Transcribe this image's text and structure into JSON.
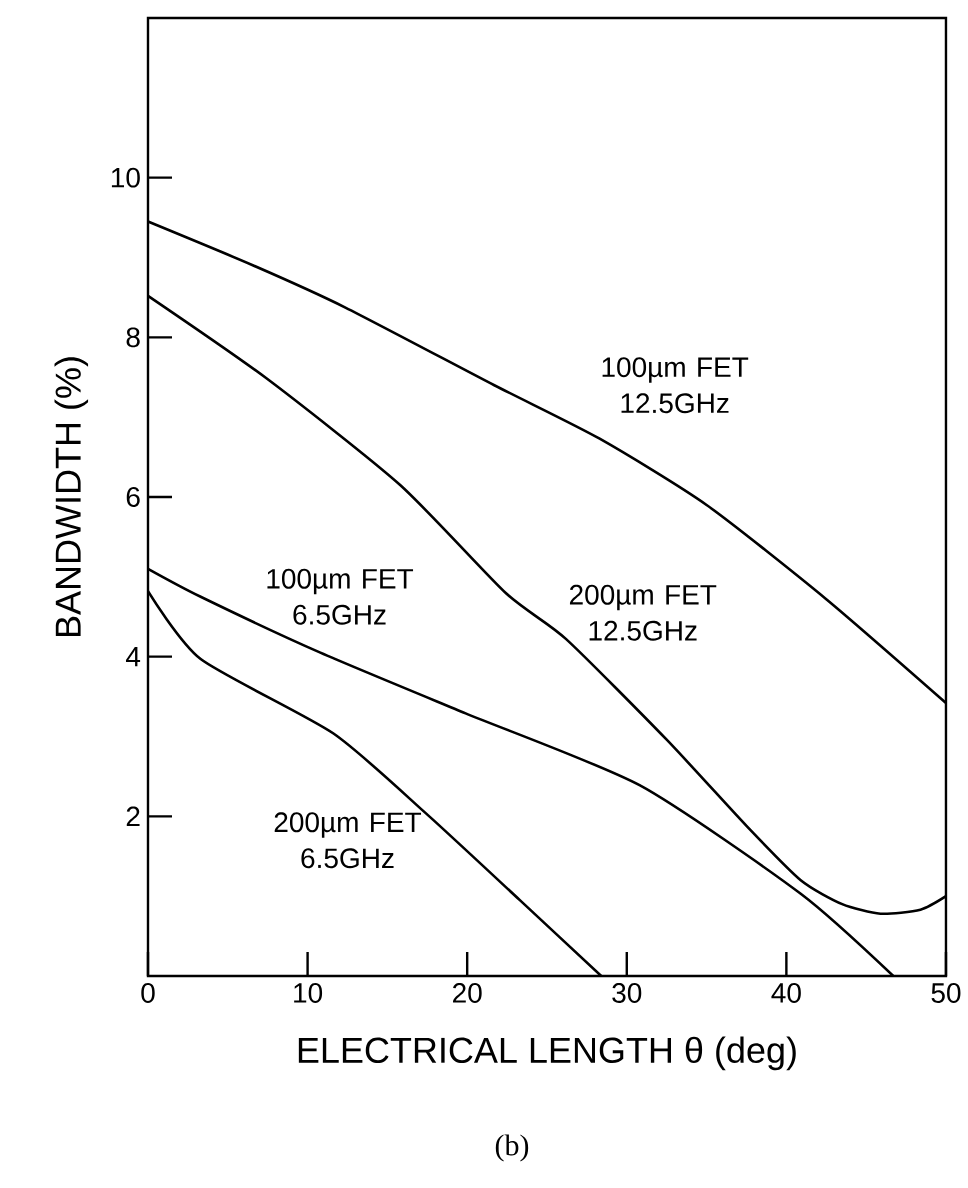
{
  "chart_data": {
    "type": "line",
    "xlabel": "ELECTRICAL LENGTH θ (deg)",
    "ylabel": "BANDWIDTH (%)",
    "xlim": [
      0,
      50
    ],
    "ylim": [
      0,
      12
    ],
    "xticks": [
      0,
      10,
      20,
      30,
      40,
      50
    ],
    "yticks": [
      2,
      4,
      6,
      8,
      10
    ],
    "line_style": "solid",
    "marker": "none",
    "legend": false,
    "annotations": [
      "(b)"
    ],
    "series": [
      {
        "name": "100µm FET 12.5GHz",
        "color": "#000000",
        "x": [
          0,
          6.6,
          12.4,
          21.7,
          28.3,
          35,
          42.5,
          50
        ],
        "values": [
          9.45,
          8.9,
          8.37,
          7.4,
          6.73,
          5.9,
          4.72,
          3.42
        ]
      },
      {
        "name": "200µm FET 12.5GHz",
        "color": "#000000",
        "x": [
          0,
          7.4,
          15.8,
          22.4,
          26.2,
          32.5,
          37.5,
          40.9,
          43.5,
          45.9,
          48.4,
          50
        ],
        "values": [
          8.52,
          7.49,
          6.15,
          4.8,
          4.22,
          2.96,
          1.88,
          1.2,
          0.9,
          0.78,
          0.83,
          1.0
        ]
      },
      {
        "name": "100µm FET 6.5GHz",
        "color": "#000000",
        "x": [
          0,
          3.3,
          10.8,
          19.9,
          30.8,
          40.9,
          46.7
        ],
        "values": [
          5.1,
          4.75,
          4.05,
          3.29,
          2.39,
          1.03,
          0
        ]
      },
      {
        "name": "200µm FET 6.5GHz",
        "color": "#000000",
        "x": [
          0,
          3.3,
          11.6,
          17.4,
          23.3,
          28.4
        ],
        "values": [
          4.82,
          3.97,
          3.04,
          2.04,
          0.95,
          0
        ]
      }
    ]
  }
}
